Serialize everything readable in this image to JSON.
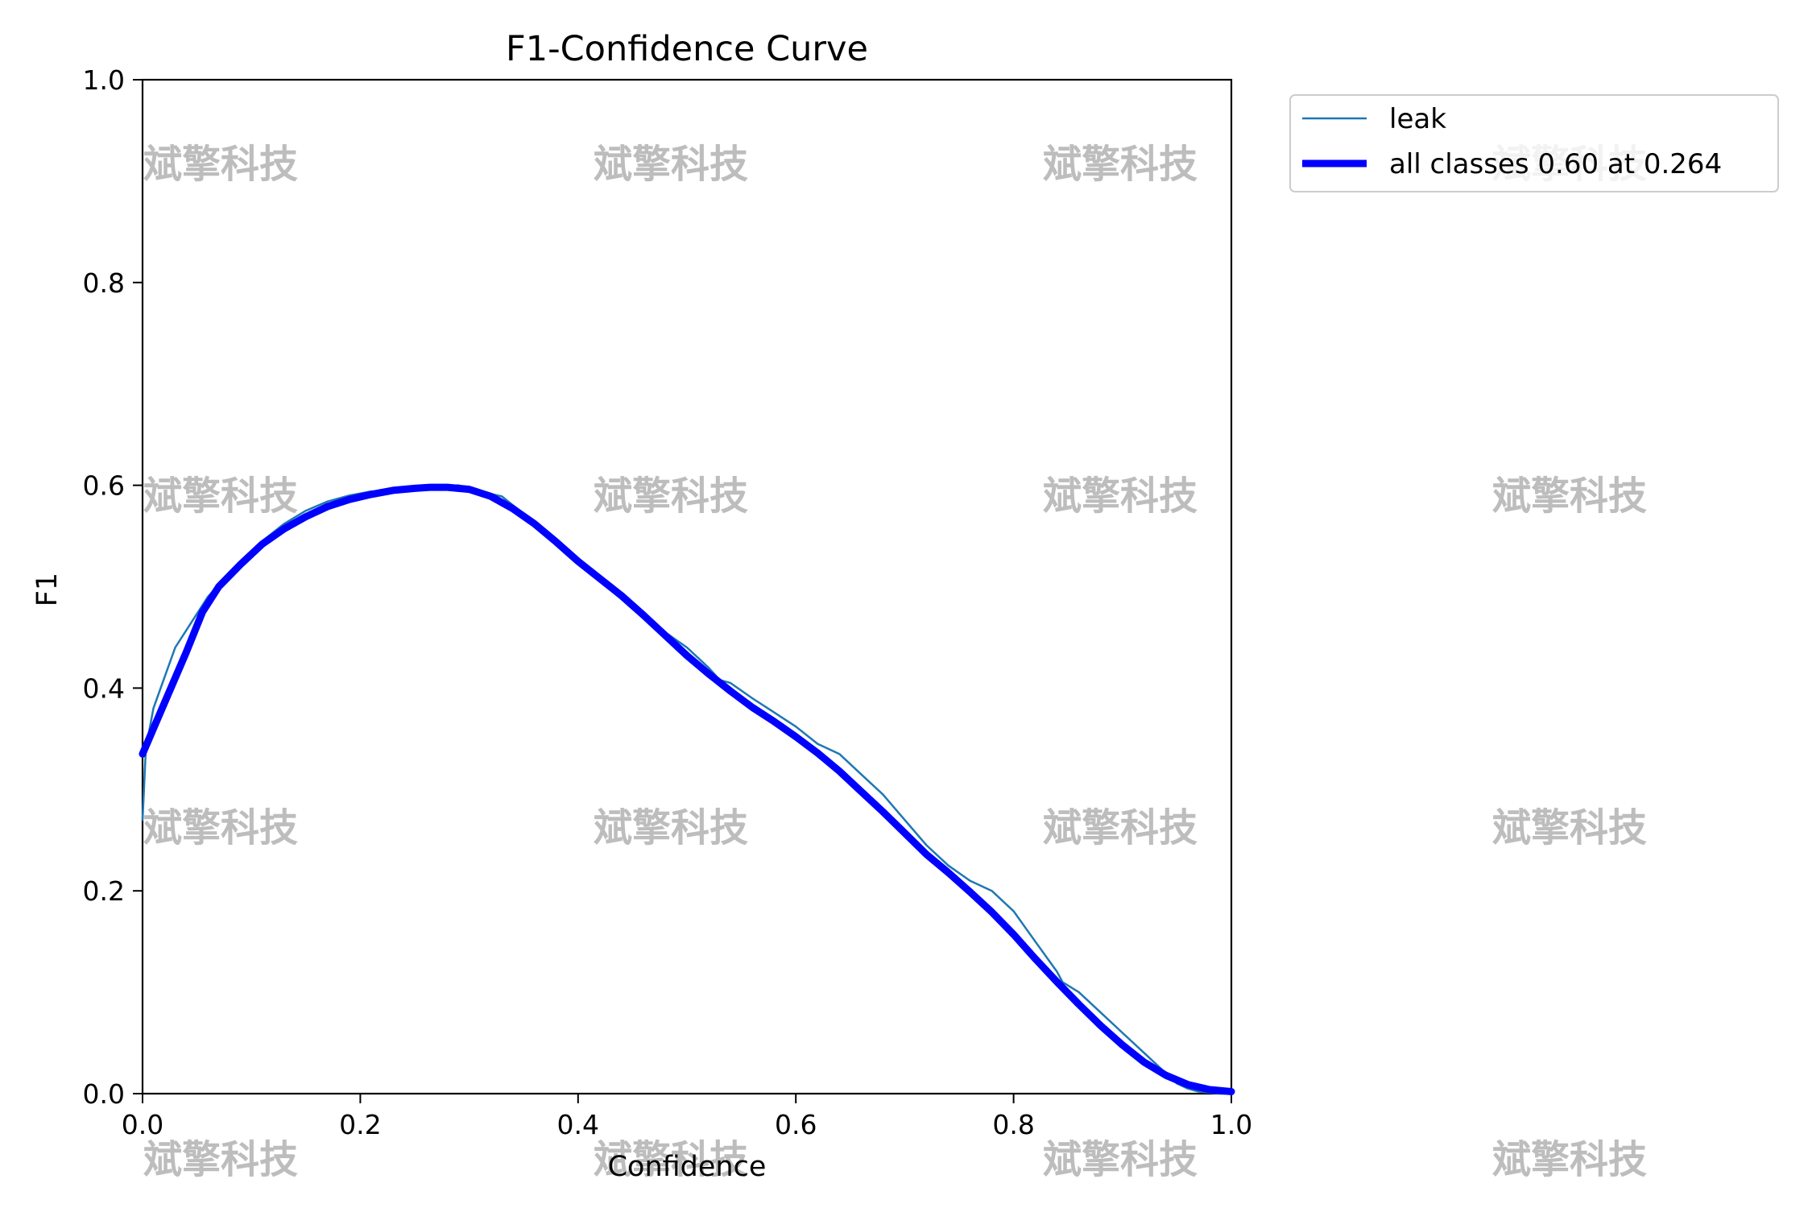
{
  "chart_data": {
    "type": "line",
    "title": "F1-Confidence Curve",
    "xlabel": "Confidence",
    "ylabel": "F1",
    "xlim": [
      0,
      1
    ],
    "ylim": [
      0,
      1
    ],
    "xticks": [
      "0.0",
      "0.2",
      "0.4",
      "0.6",
      "0.8",
      "1.0"
    ],
    "yticks": [
      "0.0",
      "0.2",
      "0.4",
      "0.6",
      "0.8",
      "1.0"
    ],
    "grid": false,
    "legend_placement": "outside-top-right",
    "series": [
      {
        "name": "leak",
        "color": "#1f77b4",
        "x": [
          0.0,
          0.003,
          0.01,
          0.02,
          0.03,
          0.045,
          0.06,
          0.075,
          0.09,
          0.11,
          0.13,
          0.15,
          0.17,
          0.19,
          0.21,
          0.23,
          0.25,
          0.27,
          0.29,
          0.3,
          0.31,
          0.33,
          0.35,
          0.37,
          0.39,
          0.41,
          0.43,
          0.45,
          0.47,
          0.48,
          0.5,
          0.52,
          0.53,
          0.54,
          0.56,
          0.58,
          0.6,
          0.62,
          0.64,
          0.65,
          0.66,
          0.68,
          0.7,
          0.72,
          0.74,
          0.76,
          0.78,
          0.8,
          0.82,
          0.84,
          0.845,
          0.86,
          0.88,
          0.9,
          0.92,
          0.94,
          0.95,
          0.96,
          0.97,
          0.98,
          0.99,
          1.0
        ],
        "y": [
          0.27,
          0.34,
          0.38,
          0.41,
          0.44,
          0.465,
          0.49,
          0.508,
          0.522,
          0.545,
          0.562,
          0.575,
          0.584,
          0.59,
          0.594,
          0.595,
          0.598,
          0.599,
          0.6,
          0.597,
          0.594,
          0.589,
          0.572,
          0.555,
          0.535,
          0.515,
          0.497,
          0.478,
          0.465,
          0.455,
          0.44,
          0.42,
          0.408,
          0.405,
          0.39,
          0.376,
          0.362,
          0.345,
          0.335,
          0.325,
          0.315,
          0.295,
          0.27,
          0.245,
          0.225,
          0.21,
          0.2,
          0.18,
          0.15,
          0.12,
          0.11,
          0.1,
          0.08,
          0.06,
          0.04,
          0.02,
          0.01,
          0.005,
          0.002,
          0.001,
          0.0,
          0.0
        ]
      },
      {
        "name": "all classes 0.60 at 0.264",
        "color": "#0000ff",
        "x": [
          0.0,
          0.02,
          0.04,
          0.055,
          0.07,
          0.09,
          0.11,
          0.13,
          0.15,
          0.17,
          0.19,
          0.21,
          0.23,
          0.25,
          0.264,
          0.28,
          0.3,
          0.32,
          0.34,
          0.36,
          0.38,
          0.4,
          0.42,
          0.44,
          0.46,
          0.48,
          0.5,
          0.52,
          0.54,
          0.56,
          0.58,
          0.6,
          0.62,
          0.64,
          0.66,
          0.68,
          0.7,
          0.72,
          0.74,
          0.76,
          0.78,
          0.8,
          0.82,
          0.84,
          0.86,
          0.88,
          0.9,
          0.92,
          0.94,
          0.96,
          0.98,
          1.0
        ],
        "y": [
          0.335,
          0.385,
          0.435,
          0.475,
          0.5,
          0.522,
          0.542,
          0.557,
          0.569,
          0.579,
          0.586,
          0.591,
          0.595,
          0.597,
          0.598,
          0.598,
          0.596,
          0.589,
          0.577,
          0.562,
          0.544,
          0.525,
          0.508,
          0.491,
          0.472,
          0.452,
          0.432,
          0.414,
          0.397,
          0.381,
          0.367,
          0.352,
          0.336,
          0.318,
          0.298,
          0.278,
          0.257,
          0.236,
          0.218,
          0.199,
          0.179,
          0.157,
          0.133,
          0.11,
          0.088,
          0.067,
          0.048,
          0.031,
          0.018,
          0.009,
          0.004,
          0.002
        ]
      }
    ]
  },
  "watermark_text": "斌擎科技"
}
